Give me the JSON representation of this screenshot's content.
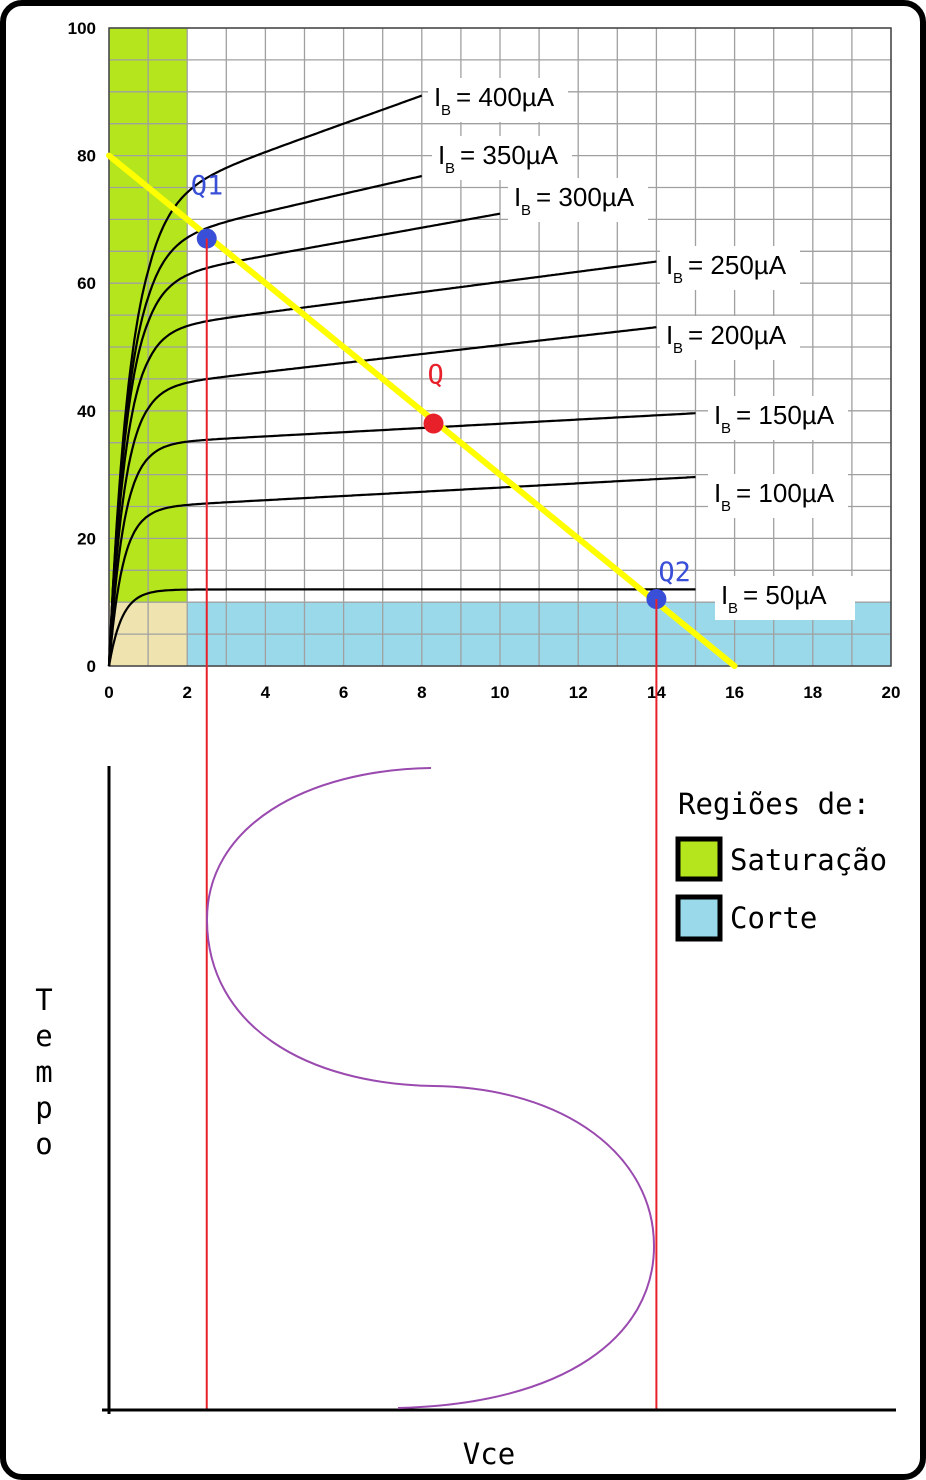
{
  "chart_data": {
    "type": "line",
    "xlim": [
      0,
      20
    ],
    "ylim": [
      0,
      100
    ],
    "x_ticks": [
      "0",
      "2",
      "4",
      "6",
      "8",
      "10",
      "12",
      "14",
      "16",
      "18",
      "20"
    ],
    "y_ticks": [
      "0",
      "20",
      "40",
      "60",
      "80",
      "100"
    ],
    "grid": true,
    "series": [
      {
        "name": "I_B = 50µA",
        "ib_label": "50µA",
        "plateau": 12,
        "slope": 0,
        "x_end": 15
      },
      {
        "name": "I_B = 100µA",
        "ib_label": "100µA",
        "plateau": 25,
        "slope": 0.33,
        "x_end": 15
      },
      {
        "name": "I_B = 150µA",
        "ib_label": "150µA",
        "plateau": 35,
        "slope": 0.33,
        "x_end": 15
      },
      {
        "name": "I_B = 200µA",
        "ib_label": "200µA",
        "plateau": 44,
        "slope": 0.7,
        "x_end": 14
      },
      {
        "name": "I_B = 250µA",
        "ib_label": "250µA",
        "plateau": 53,
        "slope": 0.8,
        "x_end": 14
      },
      {
        "name": "I_B = 300µA",
        "ib_label": "300µA",
        "plateau": 61,
        "slope": 1.1,
        "x_end": 10
      },
      {
        "name": "I_B = 350µA",
        "ib_label": "350µA",
        "plateau": 67,
        "slope": 1.4,
        "x_end": 8
      },
      {
        "name": "I_B = 400µA",
        "ib_label": "400µA",
        "plateau": 74,
        "slope": 2.2,
        "x_end": 8
      }
    ],
    "load_line": {
      "x": [
        0,
        16
      ],
      "y": [
        80,
        0
      ]
    },
    "saturation_region": {
      "x": [
        0,
        2
      ],
      "y": [
        0,
        100
      ]
    },
    "cutoff_region": {
      "x": [
        2,
        20
      ],
      "y": [
        0,
        10
      ]
    },
    "origin_region": {
      "x": [
        0,
        2
      ],
      "y": [
        0,
        10
      ]
    },
    "points": [
      {
        "name": "Q1",
        "x": 2.5,
        "y": 67,
        "color": "#3a4fd8"
      },
      {
        "name": "Q",
        "x": 8.3,
        "y": 38,
        "color": "#e8202a"
      },
      {
        "name": "Q2",
        "x": 14,
        "y": 10.5,
        "color": "#3a4fd8"
      }
    ]
  },
  "waveform": {
    "x_axis_label": "Vce",
    "y_axis_label": "Tempo",
    "y_axis_letters": [
      "T",
      "e",
      "m",
      "p",
      "o"
    ],
    "color": "#9a4aaf"
  },
  "legend": {
    "title": "Regiões de:",
    "items": [
      {
        "label": "Saturação",
        "color": "#b5e61d"
      },
      {
        "label": "Corte",
        "color": "#99d9ea"
      }
    ]
  },
  "colors": {
    "saturation": "#b5e61d",
    "cutoff": "#99d9ea",
    "origin": "#efe4b0",
    "load_line": "#ffff00",
    "projection_line": "#e8202a",
    "grid": "#a0a0a0"
  }
}
